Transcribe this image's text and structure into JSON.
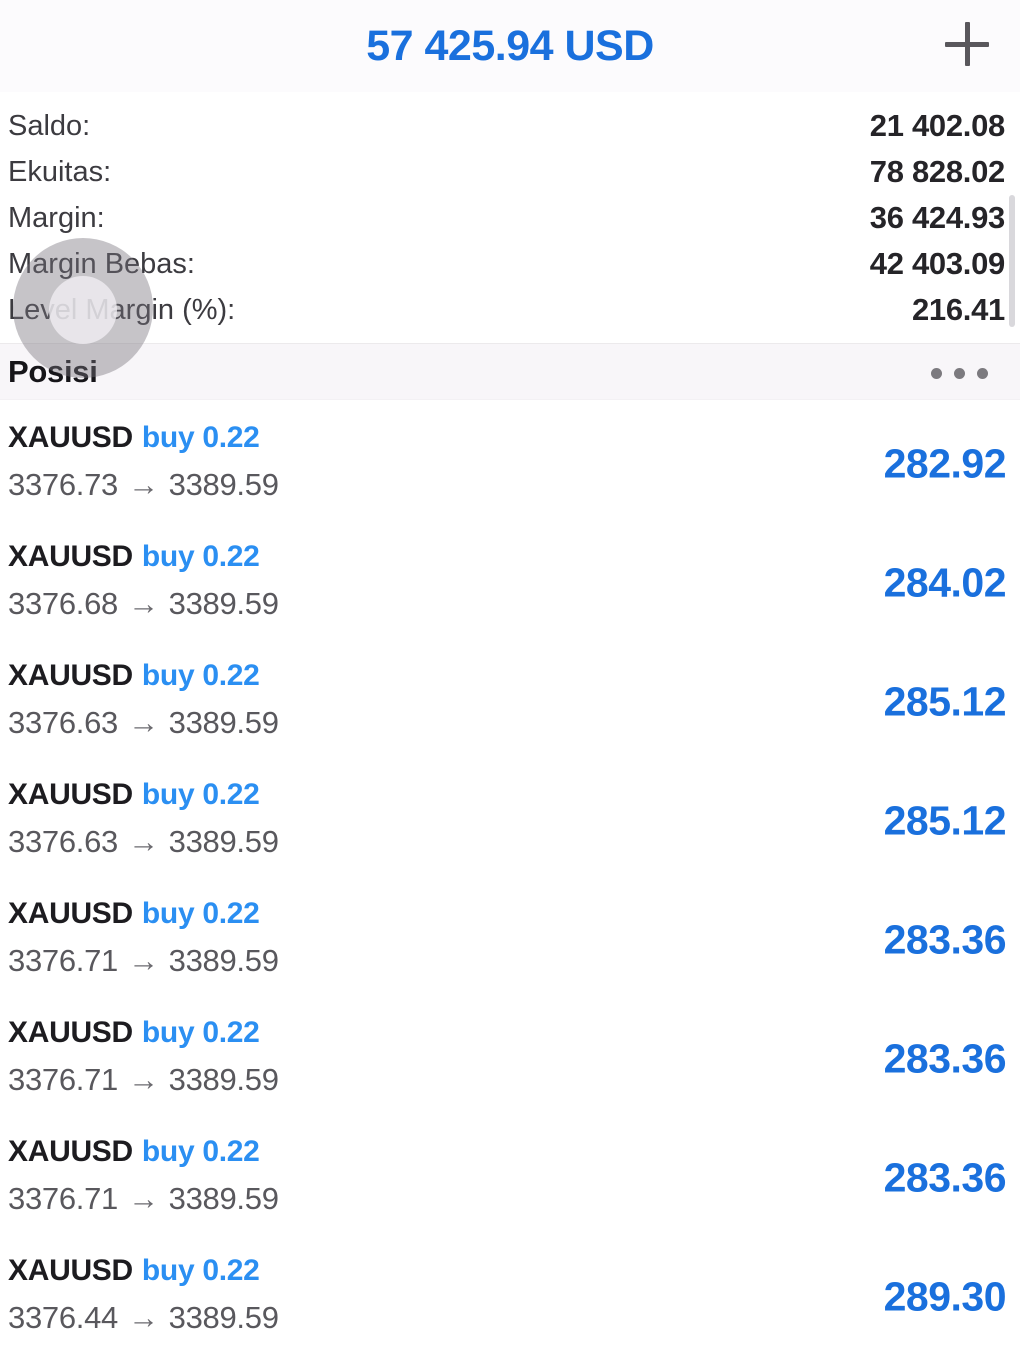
{
  "header": {
    "balance": "57 425.94 USD",
    "add_button": "plus-icon"
  },
  "summary": {
    "rows": [
      {
        "label": "Saldo:",
        "value": "21 402.08"
      },
      {
        "label": "Ekuitas:",
        "value": "78 828.02"
      },
      {
        "label": "Margin:",
        "value": "36 424.93"
      },
      {
        "label": "Margin Bebas:",
        "value": "42 403.09"
      },
      {
        "label": "Level Margin (%):",
        "value": "216.41"
      }
    ]
  },
  "positions_section": {
    "title": "Posisi",
    "menu_icon": "ellipsis-icon"
  },
  "positions": [
    {
      "symbol": "XAUUSD",
      "side_volume": "buy 0.22",
      "open": "3376.73",
      "arrow": "→",
      "close": "3389.59",
      "profit": "282.92"
    },
    {
      "symbol": "XAUUSD",
      "side_volume": "buy 0.22",
      "open": "3376.68",
      "arrow": "→",
      "close": "3389.59",
      "profit": "284.02"
    },
    {
      "symbol": "XAUUSD",
      "side_volume": "buy 0.22",
      "open": "3376.63",
      "arrow": "→",
      "close": "3389.59",
      "profit": "285.12"
    },
    {
      "symbol": "XAUUSD",
      "side_volume": "buy 0.22",
      "open": "3376.63",
      "arrow": "→",
      "close": "3389.59",
      "profit": "285.12"
    },
    {
      "symbol": "XAUUSD",
      "side_volume": "buy 0.22",
      "open": "3376.71",
      "arrow": "→",
      "close": "3389.59",
      "profit": "283.36"
    },
    {
      "symbol": "XAUUSD",
      "side_volume": "buy 0.22",
      "open": "3376.71",
      "arrow": "→",
      "close": "3389.59",
      "profit": "283.36"
    },
    {
      "symbol": "XAUUSD",
      "side_volume": "buy 0.22",
      "open": "3376.71",
      "arrow": "→",
      "close": "3389.59",
      "profit": "283.36"
    },
    {
      "symbol": "XAUUSD",
      "side_volume": "buy 0.22",
      "open": "3376.44",
      "arrow": "→",
      "close": "3389.59",
      "profit": "289.30"
    }
  ],
  "colors": {
    "accent_blue": "#1a70dd",
    "buy_blue": "#2b8ff2",
    "profit_blue": "#1a70dd",
    "section_bg": "#f8f6f9",
    "label_gray": "#3c3b40",
    "price_gray": "#59585d"
  }
}
